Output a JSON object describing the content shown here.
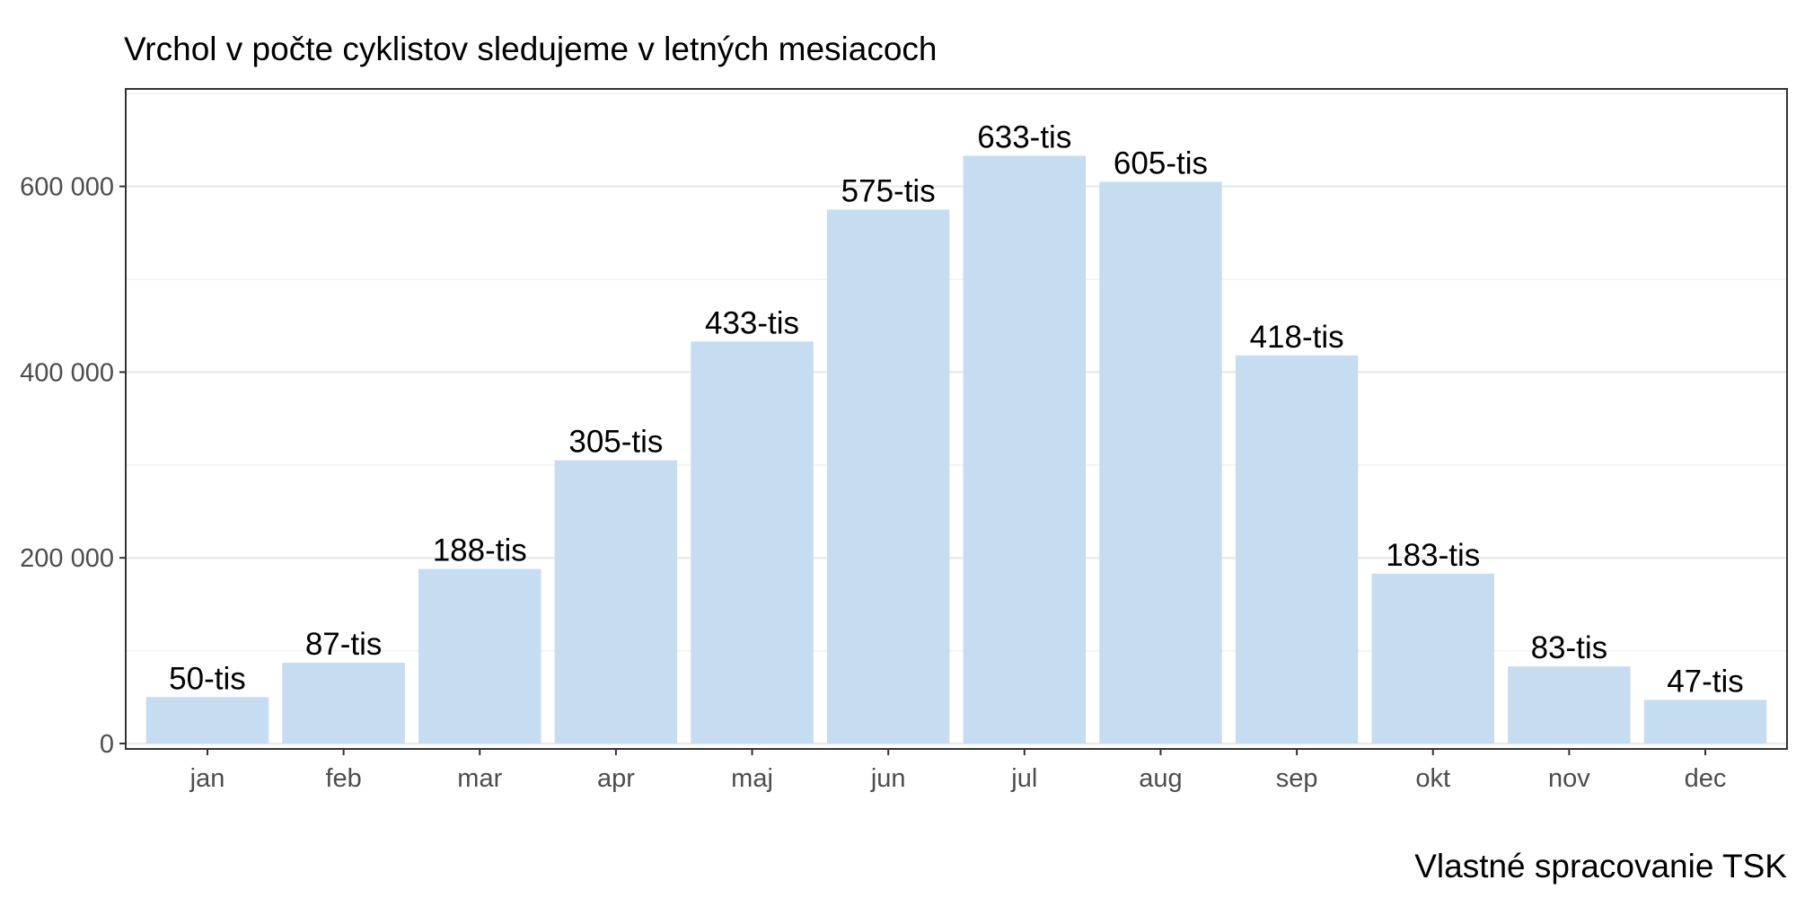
{
  "chart_data": {
    "type": "bar",
    "title": "Vrchol v počte cyklistov sledujeme v letných mesiacoch",
    "caption": "Vlastné spracovanie TSK",
    "xlabel": "",
    "ylabel": "",
    "categories": [
      "jan",
      "feb",
      "mar",
      "apr",
      "maj",
      "jun",
      "jul",
      "aug",
      "sep",
      "okt",
      "nov",
      "dec"
    ],
    "values": [
      50000,
      87000,
      188000,
      305000,
      433000,
      575000,
      633000,
      605000,
      418000,
      183000,
      83000,
      47000
    ],
    "data_labels": [
      "50-tis",
      "87-tis",
      "188-tis",
      "305-tis",
      "433-tis",
      "575-tis",
      "633-tis",
      "605-tis",
      "418-tis",
      "183-tis",
      "83-tis",
      "47-tis"
    ],
    "yticks": [
      0,
      200000,
      400000,
      600000
    ],
    "ytick_labels": [
      "0",
      "200 000",
      "400 000",
      "600 000"
    ],
    "ylim": [
      0,
      705000
    ],
    "grid": true,
    "legend": "none",
    "colors": {
      "bar": "#c6dcf0",
      "grid_major": "#ebebeb",
      "grid_minor": "#f2f2f2",
      "panel_border": "#333333",
      "tick_text": "#4d4d4d"
    }
  }
}
